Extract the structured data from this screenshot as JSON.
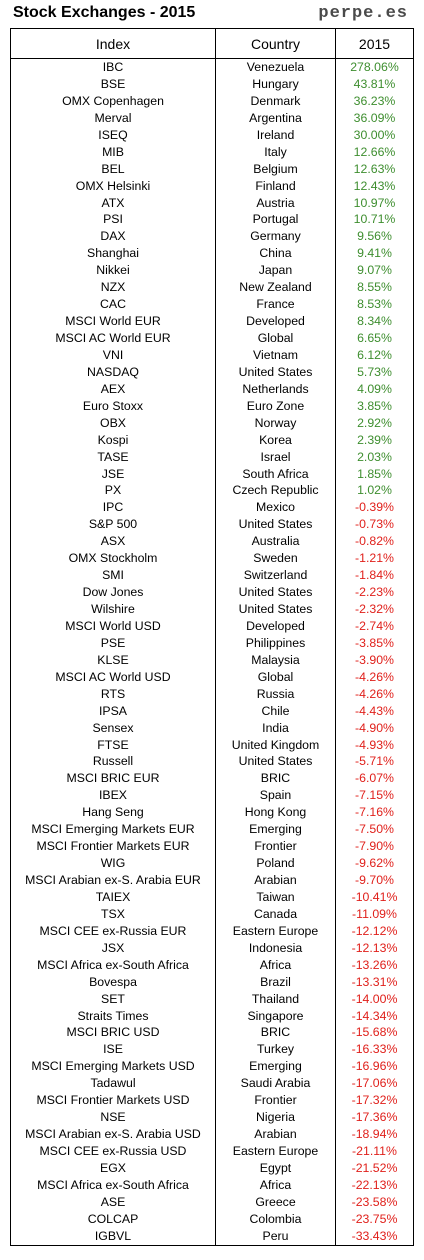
{
  "header": {
    "title": "Stock Exchanges - 2015",
    "brand": "perpe.es"
  },
  "colors": {
    "positive": "#3e8e2f",
    "negative": "#e0201b"
  },
  "table": {
    "columns": [
      "Index",
      "Country",
      "2015"
    ],
    "rows": [
      [
        "IBC",
        "Venezuela",
        "278.06%"
      ],
      [
        "BSE",
        "Hungary",
        "43.81%"
      ],
      [
        "OMX Copenhagen",
        "Denmark",
        "36.23%"
      ],
      [
        "Merval",
        "Argentina",
        "36.09%"
      ],
      [
        "ISEQ",
        "Ireland",
        "30.00%"
      ],
      [
        "MIB",
        "Italy",
        "12.66%"
      ],
      [
        "BEL",
        "Belgium",
        "12.63%"
      ],
      [
        "OMX Helsinki",
        "Finland",
        "12.43%"
      ],
      [
        "ATX",
        "Austria",
        "10.97%"
      ],
      [
        "PSI",
        "Portugal",
        "10.71%"
      ],
      [
        "DAX",
        "Germany",
        "9.56%"
      ],
      [
        "Shanghai",
        "China",
        "9.41%"
      ],
      [
        "Nikkei",
        "Japan",
        "9.07%"
      ],
      [
        "NZX",
        "New Zealand",
        "8.55%"
      ],
      [
        "CAC",
        "France",
        "8.53%"
      ],
      [
        "MSCI World EUR",
        "Developed",
        "8.34%"
      ],
      [
        "MSCI AC World EUR",
        "Global",
        "6.65%"
      ],
      [
        "VNI",
        "Vietnam",
        "6.12%"
      ],
      [
        "NASDAQ",
        "United States",
        "5.73%"
      ],
      [
        "AEX",
        "Netherlands",
        "4.09%"
      ],
      [
        "Euro Stoxx",
        "Euro Zone",
        "3.85%"
      ],
      [
        "OBX",
        "Norway",
        "2.92%"
      ],
      [
        "Kospi",
        "Korea",
        "2.39%"
      ],
      [
        "TASE",
        "Israel",
        "2.03%"
      ],
      [
        "JSE",
        "South Africa",
        "1.85%"
      ],
      [
        "PX",
        "Czech Republic",
        "1.02%"
      ],
      [
        "IPC",
        "Mexico",
        "-0.39%"
      ],
      [
        "S&P 500",
        "United States",
        "-0.73%"
      ],
      [
        "ASX",
        "Australia",
        "-0.82%"
      ],
      [
        "OMX Stockholm",
        "Sweden",
        "-1.21%"
      ],
      [
        "SMI",
        "Switzerland",
        "-1.84%"
      ],
      [
        "Dow Jones",
        "United States",
        "-2.23%"
      ],
      [
        "Wilshire",
        "United States",
        "-2.32%"
      ],
      [
        "MSCI World USD",
        "Developed",
        "-2.74%"
      ],
      [
        "PSE",
        "Philippines",
        "-3.85%"
      ],
      [
        "KLSE",
        "Malaysia",
        "-3.90%"
      ],
      [
        "MSCI AC World USD",
        "Global",
        "-4.26%"
      ],
      [
        "RTS",
        "Russia",
        "-4.26%"
      ],
      [
        "IPSA",
        "Chile",
        "-4.43%"
      ],
      [
        "Sensex",
        "India",
        "-4.90%"
      ],
      [
        "FTSE",
        "United Kingdom",
        "-4.93%"
      ],
      [
        "Russell",
        "United States",
        "-5.71%"
      ],
      [
        "MSCI BRIC EUR",
        "BRIC",
        "-6.07%"
      ],
      [
        "IBEX",
        "Spain",
        "-7.15%"
      ],
      [
        "Hang Seng",
        "Hong Kong",
        "-7.16%"
      ],
      [
        "MSCI Emerging Markets EUR",
        "Emerging",
        "-7.50%"
      ],
      [
        "MSCI Frontier Markets EUR",
        "Frontier",
        "-7.90%"
      ],
      [
        "WIG",
        "Poland",
        "-9.62%"
      ],
      [
        "MSCI Arabian ex-S. Arabia EUR",
        "Arabian",
        "-9.70%"
      ],
      [
        "TAIEX",
        "Taiwan",
        "-10.41%"
      ],
      [
        "TSX",
        "Canada",
        "-11.09%"
      ],
      [
        "MSCI CEE ex-Russia EUR",
        "Eastern Europe",
        "-12.12%"
      ],
      [
        "JSX",
        "Indonesia",
        "-12.13%"
      ],
      [
        "MSCI Africa ex-South Africa",
        "Africa",
        "-13.26%"
      ],
      [
        "Bovespa",
        "Brazil",
        "-13.31%"
      ],
      [
        "SET",
        "Thailand",
        "-14.00%"
      ],
      [
        "Straits Times",
        "Singapore",
        "-14.34%"
      ],
      [
        "MSCI BRIC USD",
        "BRIC",
        "-15.68%"
      ],
      [
        "ISE",
        "Turkey",
        "-16.33%"
      ],
      [
        "MSCI Emerging Markets USD",
        "Emerging",
        "-16.96%"
      ],
      [
        "Tadawul",
        "Saudi Arabia",
        "-17.06%"
      ],
      [
        "MSCI Frontier Markets USD",
        "Frontier",
        "-17.32%"
      ],
      [
        "NSE",
        "Nigeria",
        "-17.36%"
      ],
      [
        "MSCI Arabian ex-S. Arabia USD",
        "Arabian",
        "-18.94%"
      ],
      [
        "MSCI CEE ex-Russia USD",
        "Eastern Europe",
        "-21.11%"
      ],
      [
        "EGX",
        "Egypt",
        "-21.52%"
      ],
      [
        "MSCI Africa ex-South Africa",
        "Africa",
        "-22.13%"
      ],
      [
        "ASE",
        "Greece",
        "-23.58%"
      ],
      [
        "COLCAP",
        "Colombia",
        "-23.75%"
      ],
      [
        "IGBVL",
        "Peru",
        "-33.43%"
      ]
    ]
  }
}
